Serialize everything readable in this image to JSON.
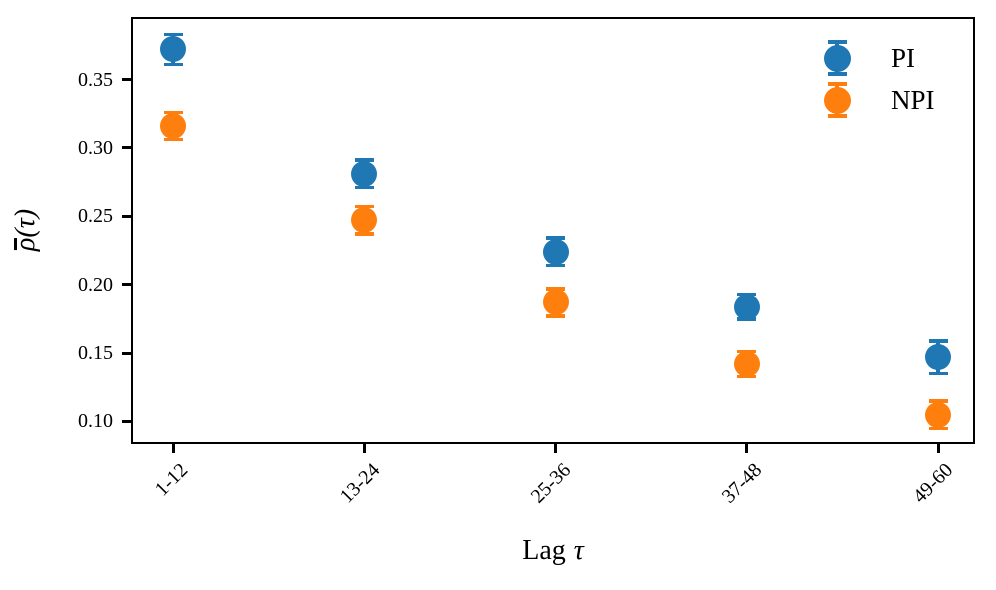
{
  "chart_data": {
    "type": "scatter",
    "title": "",
    "xlabel": "Lag τ",
    "xlabel_parts": {
      "prefix": "Lag",
      "symbol": "τ"
    },
    "ylabel": "ρ̄(τ)",
    "ylabel_parts": {
      "barred": "ρ",
      "suffix": "(τ)"
    },
    "categories": [
      "1-12",
      "13-24",
      "25-36",
      "37-48",
      "49-60"
    ],
    "series": [
      {
        "name": "PI",
        "color": "#1f77b4",
        "values": [
          0.372,
          0.281,
          0.224,
          0.184,
          0.147
        ],
        "errors": [
          0.011,
          0.01,
          0.01,
          0.009,
          0.012
        ]
      },
      {
        "name": "NPI",
        "color": "#ff7f0e",
        "values": [
          0.316,
          0.247,
          0.187,
          0.142,
          0.105
        ],
        "errors": [
          0.01,
          0.01,
          0.01,
          0.009,
          0.01
        ]
      }
    ],
    "yticks": [
      0.35,
      0.3,
      0.25,
      0.2,
      0.15,
      0.1
    ],
    "ytick_labels": [
      "0.35",
      "0.30",
      "0.25",
      "0.20",
      "0.15",
      "0.10"
    ],
    "ylim": [
      0.085,
      0.395
    ],
    "grid": false,
    "legend": {
      "position": "upper right",
      "frame": false,
      "entries": [
        "PI",
        "NPI"
      ]
    },
    "marker": "circle",
    "errorbar_caps": true,
    "axis_color": "#000000",
    "background": "#ffffff"
  }
}
